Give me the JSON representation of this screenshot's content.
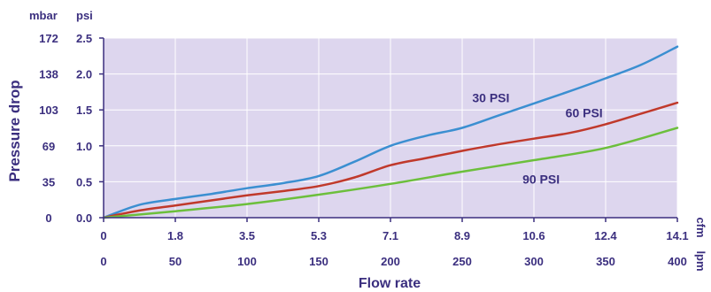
{
  "chart_data": {
    "type": "line",
    "xlabel": "Flow rate",
    "ylabel": "Pressure drop",
    "x_units": {
      "primary": "cfm",
      "secondary": "lpm"
    },
    "y_units": {
      "primary": "psi",
      "secondary": "mbar"
    },
    "x_ticks_cfm": [
      "0",
      "1.8",
      "3.5",
      "5.3",
      "7.1",
      "8.9",
      "10.6",
      "12.4",
      "14.1"
    ],
    "x_ticks_lpm": [
      "0",
      "50",
      "100",
      "150",
      "200",
      "250",
      "300",
      "350",
      "400"
    ],
    "y_ticks_psi": [
      "0.0",
      "0.5",
      "1.0",
      "1.5",
      "2.0",
      "2.5"
    ],
    "y_ticks_mbar": [
      "0",
      "35",
      "69",
      "103",
      "138",
      "172"
    ],
    "xlim": [
      0,
      400
    ],
    "ylim": [
      0,
      2.5
    ],
    "grid": true,
    "background_color": "#ddd6ee",
    "text_color": "#3b2f7f",
    "series": [
      {
        "name": "30 PSI",
        "color": "#3b8fd1",
        "x": [
          0,
          25,
          50,
          75,
          100,
          125,
          150,
          175,
          200,
          225,
          250,
          275,
          300,
          325,
          350,
          375,
          400
        ],
        "y": [
          0,
          0.18,
          0.26,
          0.33,
          0.41,
          0.48,
          0.58,
          0.78,
          1.0,
          1.14,
          1.25,
          1.42,
          1.59,
          1.76,
          1.94,
          2.13,
          2.38
        ]
      },
      {
        "name": "60 PSI",
        "color": "#c0392b",
        "x": [
          0,
          25,
          50,
          75,
          100,
          125,
          150,
          175,
          200,
          225,
          250,
          275,
          300,
          325,
          350,
          375,
          400
        ],
        "y": [
          0,
          0.1,
          0.17,
          0.24,
          0.31,
          0.37,
          0.44,
          0.56,
          0.73,
          0.83,
          0.93,
          1.02,
          1.1,
          1.18,
          1.3,
          1.45,
          1.6
        ]
      },
      {
        "name": "90 PSI",
        "color": "#6cbf3c",
        "x": [
          0,
          50,
          100,
          150,
          200,
          250,
          300,
          350,
          400
        ],
        "y": [
          0,
          0.09,
          0.19,
          0.32,
          0.47,
          0.64,
          0.8,
          0.97,
          1.25
        ]
      }
    ]
  }
}
